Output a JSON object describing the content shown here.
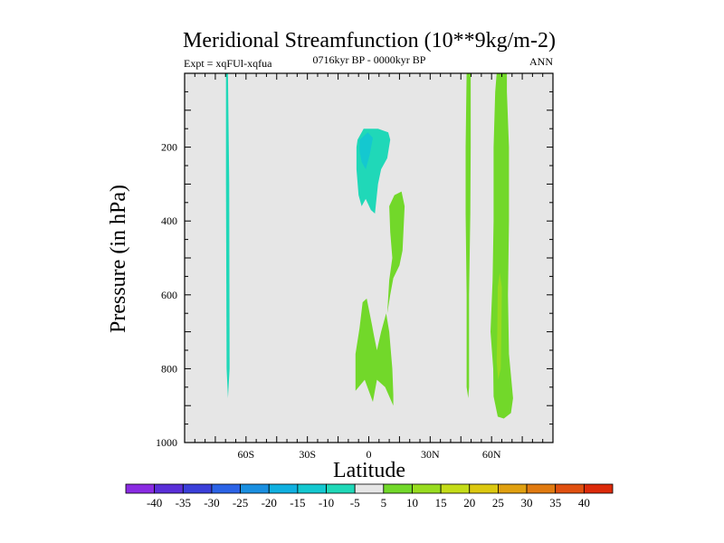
{
  "chart_data": {
    "type": "heatmap",
    "title": "Meridional Streamfunction (10**9kg/m-2)",
    "subtitle_left": "Expt = xqFUl-xqfua",
    "subtitle_center": "0716kyr BP - 0000kyr BP",
    "subtitle_right": "ANN",
    "xlabel": "Latitude",
    "ylabel": "Pressure (in hPa)",
    "xlim": [
      -90,
      90
    ],
    "ylim": [
      1000,
      0
    ],
    "x_ticks": [
      {
        "value": -60,
        "label": "60S"
      },
      {
        "value": -30,
        "label": "30S"
      },
      {
        "value": 0,
        "label": "0"
      },
      {
        "value": 30,
        "label": "30N"
      },
      {
        "value": 60,
        "label": "60N"
      }
    ],
    "y_ticks": [
      {
        "value": 200,
        "label": "200"
      },
      {
        "value": 400,
        "label": "400"
      },
      {
        "value": 600,
        "label": "600"
      },
      {
        "value": 800,
        "label": "800"
      },
      {
        "value": 1000,
        "label": "1000"
      }
    ],
    "background_color": "#e6e6e6",
    "colorbar": {
      "labels": [
        "-40",
        "-35",
        "-30",
        "-25",
        "-20",
        "-15",
        "-10",
        "-5",
        "5",
        "10",
        "15",
        "20",
        "25",
        "30",
        "35",
        "40"
      ],
      "colors": [
        "#8a2be2",
        "#5a2fd8",
        "#3b3fd9",
        "#2b63e6",
        "#1a8fe0",
        "#10b0e0",
        "#14c8d0",
        "#20d8b8",
        "#e6e6e6",
        "#72d82a",
        "#98dc20",
        "#c4dc18",
        "#dcc810",
        "#e0a010",
        "#e07a10",
        "#e05010",
        "#dc2a0a"
      ]
    },
    "regions": [
      {
        "label": "neg 60S column",
        "color": "#20d8b8",
        "points": [
          [
            -69.8,
            0
          ],
          [
            -68.8,
            0
          ],
          [
            -68.2,
            300
          ],
          [
            -68.0,
            800
          ],
          [
            -68.8,
            880
          ],
          [
            -69.5,
            800
          ],
          [
            -69.8,
            300
          ]
        ]
      },
      {
        "label": "neg upper equatorial",
        "color": "#20d8b8",
        "points": [
          [
            -5.5,
            180
          ],
          [
            -2.5,
            150
          ],
          [
            4.5,
            150
          ],
          [
            9.5,
            160
          ],
          [
            10.5,
            180
          ],
          [
            9.0,
            230
          ],
          [
            6.0,
            260
          ],
          [
            4.5,
            300
          ],
          [
            3.0,
            380
          ],
          [
            1.0,
            370
          ],
          [
            -1.5,
            340
          ],
          [
            -3.5,
            360
          ],
          [
            -5.0,
            330
          ],
          [
            -6.0,
            260
          ],
          [
            -6.0,
            200
          ]
        ]
      },
      {
        "label": "neg core",
        "color": "#14c8d0",
        "points": [
          [
            -4.5,
            180
          ],
          [
            -0.5,
            160
          ],
          [
            2.0,
            175
          ],
          [
            0.5,
            220
          ],
          [
            -1.5,
            260
          ],
          [
            -3.5,
            240
          ],
          [
            -4.5,
            210
          ]
        ]
      },
      {
        "label": "pos mid tropics",
        "color": "#72d82a",
        "points": [
          [
            10.0,
            360
          ],
          [
            12.5,
            330
          ],
          [
            16.0,
            320
          ],
          [
            17.5,
            360
          ],
          [
            16.5,
            480
          ],
          [
            15.0,
            520
          ],
          [
            12.0,
            555
          ],
          [
            10.5,
            600
          ],
          [
            9.0,
            650
          ],
          [
            10.0,
            560
          ],
          [
            11.5,
            500
          ],
          [
            10.5,
            430
          ]
        ]
      },
      {
        "label": "pos lower tropics",
        "color": "#72d82a",
        "points": [
          [
            -3.0,
            620
          ],
          [
            -1.0,
            610
          ],
          [
            1.5,
            680
          ],
          [
            2.5,
            710
          ],
          [
            4.0,
            750
          ],
          [
            6.0,
            700
          ],
          [
            8.5,
            650
          ],
          [
            10.0,
            700
          ],
          [
            11.5,
            800
          ],
          [
            12.0,
            870
          ],
          [
            12.0,
            900
          ],
          [
            8.0,
            850
          ],
          [
            4.0,
            830
          ],
          [
            2.0,
            890
          ],
          [
            -2.0,
            830
          ],
          [
            -6.5,
            860
          ],
          [
            -6.5,
            760
          ],
          [
            -4.5,
            690
          ]
        ]
      },
      {
        "label": "pos 45N column",
        "color": "#72d82a",
        "points": [
          [
            47.8,
            0
          ],
          [
            49.8,
            0
          ],
          [
            49.8,
            200
          ],
          [
            49.6,
            380
          ],
          [
            49.0,
            600
          ],
          [
            49.0,
            850
          ],
          [
            48.6,
            880
          ],
          [
            47.8,
            850
          ],
          [
            47.8,
            600
          ],
          [
            47.3,
            380
          ],
          [
            47.3,
            200
          ]
        ]
      },
      {
        "label": "pos 60N cell",
        "color": "#72d82a",
        "points": [
          [
            62.5,
            0
          ],
          [
            67.5,
            0
          ],
          [
            67.5,
            50
          ],
          [
            68.5,
            200
          ],
          [
            68.5,
            400
          ],
          [
            68.0,
            600
          ],
          [
            68.5,
            760
          ],
          [
            70.5,
            880
          ],
          [
            69.5,
            920
          ],
          [
            66.0,
            935
          ],
          [
            63.0,
            930
          ],
          [
            61.0,
            875
          ],
          [
            60.8,
            800
          ],
          [
            59.5,
            700
          ],
          [
            60.5,
            560
          ],
          [
            61.0,
            400
          ],
          [
            61.0,
            200
          ],
          [
            61.8,
            50
          ]
        ]
      },
      {
        "label": "pos 60N core",
        "color": "#98dc20",
        "points": [
          [
            63.0,
            580
          ],
          [
            64.0,
            540
          ],
          [
            65.0,
            580
          ],
          [
            64.8,
            700
          ],
          [
            64.5,
            800
          ],
          [
            63.2,
            830
          ],
          [
            62.5,
            780
          ],
          [
            62.8,
            700
          ]
        ]
      }
    ]
  }
}
